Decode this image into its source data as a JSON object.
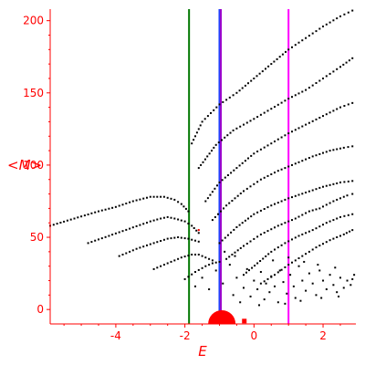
{
  "chart_data": {
    "type": "scatter",
    "title": "",
    "xlabel": "E",
    "ylabel": "<M>",
    "xlim": [
      -5.9,
      2.95
    ],
    "ylim": [
      -10,
      208
    ],
    "x_ticks": [
      "-4",
      "-2",
      "0",
      "2"
    ],
    "x_tick_values": [
      -4,
      -2,
      0,
      2
    ],
    "y_ticks": [
      "0",
      "50",
      "100",
      "150",
      "200"
    ],
    "y_tick_values": [
      0,
      50,
      100,
      150,
      200
    ],
    "grid": false,
    "legend": "none",
    "axis_color": "#ff0000",
    "point_color": "#000000",
    "series": [
      {
        "values": [
          [
            -5.9,
            58
          ],
          [
            -5.2,
            63
          ],
          [
            -4.5,
            68
          ],
          [
            -4.0,
            71
          ],
          [
            -3.5,
            75
          ],
          [
            -3.0,
            78
          ],
          [
            -2.8,
            78
          ],
          [
            -2.6,
            78
          ],
          [
            -2.3,
            76
          ],
          [
            -2.1,
            73
          ],
          [
            -1.9,
            68
          ]
        ]
      },
      {
        "values": [
          [
            -4.8,
            46
          ],
          [
            -4.2,
            51
          ],
          [
            -3.6,
            56
          ],
          [
            -3.0,
            61
          ],
          [
            -2.7,
            63
          ],
          [
            -2.5,
            64
          ],
          [
            -2.3,
            63
          ],
          [
            -2.0,
            61
          ],
          [
            -1.8,
            58
          ],
          [
            -1.6,
            53
          ]
        ]
      },
      {
        "values": [
          [
            -3.9,
            37
          ],
          [
            -3.4,
            42
          ],
          [
            -2.9,
            46
          ],
          [
            -2.5,
            49
          ],
          [
            -2.2,
            50
          ],
          [
            -1.9,
            49
          ],
          [
            -1.6,
            47
          ]
        ]
      },
      {
        "values": [
          [
            -2.9,
            28
          ],
          [
            -2.5,
            32
          ],
          [
            -2.1,
            36
          ],
          [
            -1.8,
            38
          ],
          [
            -1.6,
            38
          ],
          [
            -1.4,
            36
          ],
          [
            -1.2,
            34
          ]
        ]
      },
      {
        "values": [
          [
            -2.0,
            21
          ],
          [
            -1.7,
            26
          ],
          [
            -1.4,
            30
          ],
          [
            -1.2,
            32
          ],
          [
            -1.0,
            33
          ]
        ]
      },
      {
        "values": [
          [
            -1.8,
            115
          ],
          [
            -1.5,
            130
          ],
          [
            -1.0,
            142
          ],
          [
            -0.5,
            150
          ],
          [
            0.0,
            160
          ],
          [
            0.5,
            170
          ],
          [
            1.0,
            180
          ],
          [
            1.5,
            188
          ],
          [
            2.0,
            196
          ],
          [
            2.5,
            203
          ],
          [
            2.85,
            207
          ]
        ]
      },
      {
        "values": [
          [
            -1.6,
            98
          ],
          [
            -1.1,
            114
          ],
          [
            -0.6,
            124
          ],
          [
            0.0,
            132
          ],
          [
            0.5,
            139
          ],
          [
            1.0,
            146
          ],
          [
            1.5,
            152
          ],
          [
            2.0,
            160
          ],
          [
            2.5,
            168
          ],
          [
            2.85,
            174
          ]
        ]
      },
      {
        "values": [
          [
            -1.4,
            75
          ],
          [
            -1.0,
            88
          ],
          [
            -0.5,
            98
          ],
          [
            0.0,
            108
          ],
          [
            0.5,
            115
          ],
          [
            1.0,
            122
          ],
          [
            1.5,
            128
          ],
          [
            2.0,
            134
          ],
          [
            2.5,
            140
          ],
          [
            2.85,
            143
          ]
        ]
      },
      {
        "values": [
          [
            -1.2,
            62
          ],
          [
            -0.8,
            72
          ],
          [
            -0.3,
            82
          ],
          [
            0.2,
            90
          ],
          [
            0.7,
            96
          ],
          [
            1.2,
            101
          ],
          [
            1.7,
            106
          ],
          [
            2.2,
            110
          ],
          [
            2.6,
            112
          ],
          [
            2.85,
            113
          ]
        ]
      },
      {
        "values": [
          [
            -1.0,
            46
          ],
          [
            -0.5,
            57
          ],
          [
            0.0,
            66
          ],
          [
            0.5,
            72
          ],
          [
            1.0,
            77
          ],
          [
            1.5,
            81
          ],
          [
            2.0,
            85
          ],
          [
            2.5,
            88
          ],
          [
            2.85,
            89
          ]
        ]
      },
      {
        "values": [
          [
            -0.8,
            35
          ],
          [
            -0.3,
            44
          ],
          [
            0.2,
            52
          ],
          [
            0.7,
            58
          ],
          [
            1.2,
            63
          ],
          [
            1.6,
            68
          ],
          [
            1.9,
            70
          ],
          [
            2.3,
            75
          ],
          [
            2.7,
            79
          ],
          [
            2.85,
            80
          ]
        ]
      },
      {
        "values": [
          [
            -0.3,
            24
          ],
          [
            0.1,
            32
          ],
          [
            0.5,
            40
          ],
          [
            0.9,
            46
          ],
          [
            1.3,
            51
          ],
          [
            1.7,
            55
          ],
          [
            2.1,
            60
          ],
          [
            2.5,
            64
          ],
          [
            2.85,
            66
          ]
        ]
      },
      {
        "values": [
          [
            0.2,
            18
          ],
          [
            0.6,
            24
          ],
          [
            1.0,
            31
          ],
          [
            1.4,
            37
          ],
          [
            1.8,
            43
          ],
          [
            2.2,
            48
          ],
          [
            2.6,
            52
          ],
          [
            2.85,
            55
          ]
        ]
      }
    ],
    "scatter_cloud": [
      [
        -1.7,
        16
      ],
      [
        -1.5,
        22
      ],
      [
        -1.3,
        14
      ],
      [
        -1.1,
        27
      ],
      [
        -0.9,
        18
      ],
      [
        -0.7,
        31
      ],
      [
        -0.6,
        10
      ],
      [
        -0.5,
        22
      ],
      [
        -0.3,
        15
      ],
      [
        -0.2,
        28
      ],
      [
        -0.1,
        9
      ],
      [
        0.0,
        20
      ],
      [
        0.1,
        14
      ],
      [
        0.2,
        26
      ],
      [
        0.3,
        7
      ],
      [
        0.35,
        18
      ],
      [
        0.45,
        12
      ],
      [
        0.5,
        23
      ],
      [
        0.6,
        16
      ],
      [
        0.7,
        5
      ],
      [
        0.75,
        27
      ],
      [
        0.85,
        19
      ],
      [
        0.95,
        11
      ],
      [
        1.05,
        24
      ],
      [
        1.15,
        16
      ],
      [
        1.2,
        8
      ],
      [
        1.3,
        30
      ],
      [
        1.4,
        20
      ],
      [
        1.5,
        13
      ],
      [
        1.6,
        25
      ],
      [
        1.7,
        18
      ],
      [
        1.8,
        10
      ],
      [
        1.9,
        27
      ],
      [
        2.0,
        20
      ],
      [
        2.1,
        14
      ],
      [
        2.2,
        24
      ],
      [
        2.3,
        17
      ],
      [
        2.4,
        12
      ],
      [
        2.5,
        22
      ],
      [
        2.6,
        15
      ],
      [
        2.7,
        20
      ],
      [
        2.8,
        17
      ],
      [
        2.85,
        21
      ],
      [
        -0.4,
        5
      ],
      [
        0.55,
        34
      ],
      [
        1.0,
        36
      ],
      [
        1.45,
        33
      ],
      [
        1.85,
        31
      ],
      [
        2.35,
        29
      ],
      [
        0.15,
        3
      ],
      [
        0.9,
        4
      ],
      [
        1.35,
        6
      ],
      [
        1.95,
        8
      ],
      [
        2.45,
        9
      ],
      [
        -0.85,
        40
      ],
      [
        -0.55,
        37
      ],
      [
        2.9,
        24
      ]
    ],
    "vertical_lines": [
      {
        "x": -1.88,
        "color": "#007700"
      },
      {
        "x": -1.0,
        "color": "#2244ff"
      },
      {
        "x": -0.96,
        "color": "#9900cc"
      },
      {
        "x": 1.0,
        "color": "#ff00ff"
      }
    ],
    "markers": [
      {
        "x": -0.93,
        "y": -5,
        "color": "#ff0000",
        "kind": "filled-semicircle"
      },
      {
        "x": -0.28,
        "y": -8,
        "color": "#ff0000",
        "kind": "square"
      },
      {
        "x": -1.6,
        "y": 55,
        "color": "#ff0000",
        "kind": "dot"
      }
    ]
  }
}
